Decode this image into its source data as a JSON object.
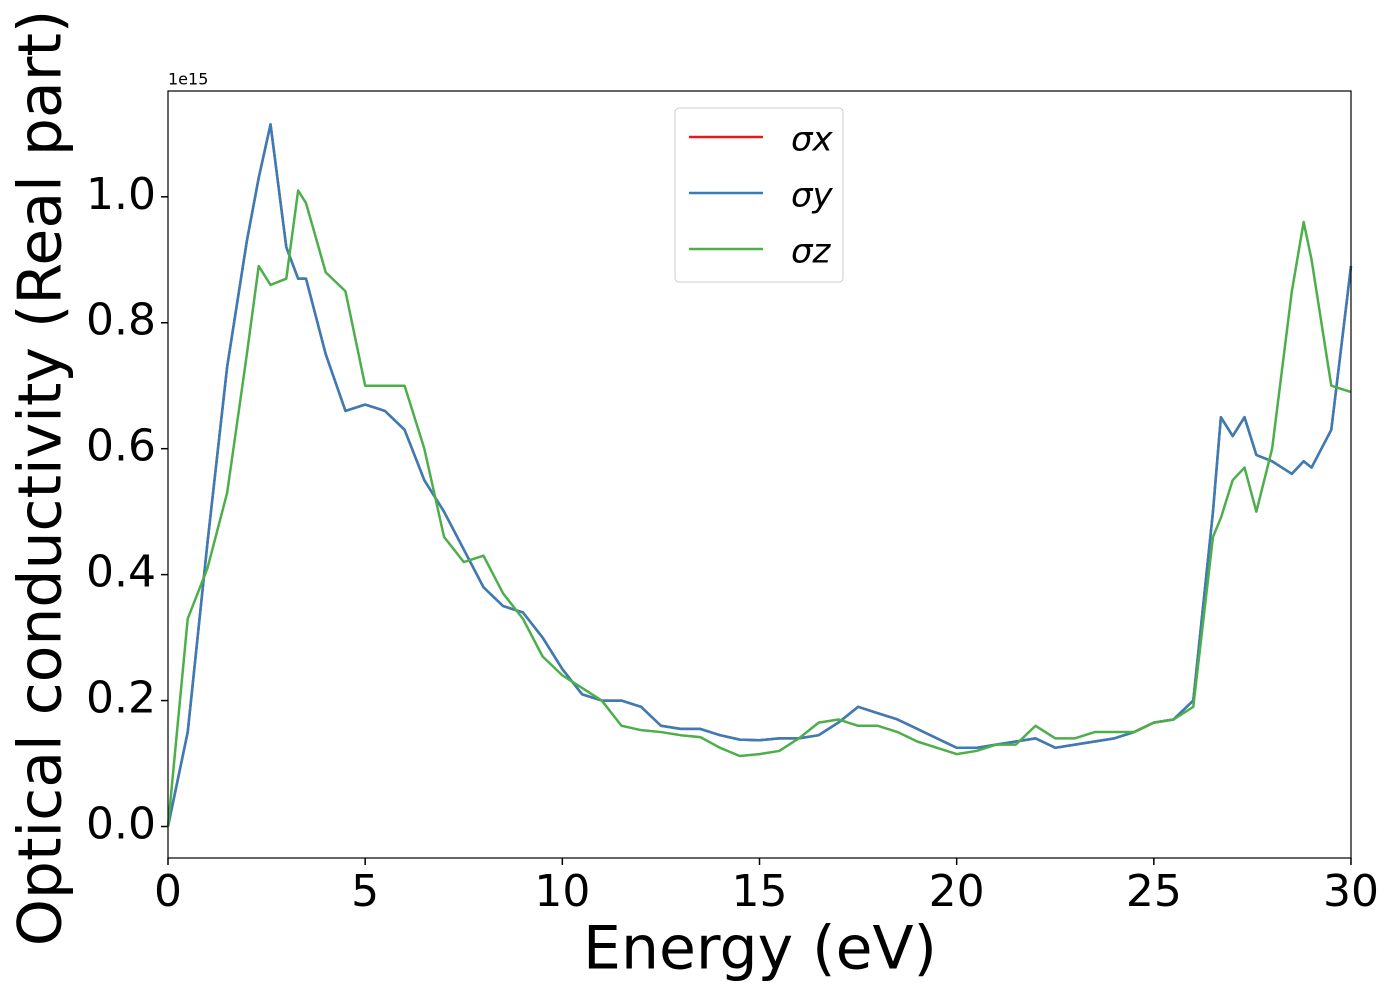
{
  "chart_data": {
    "type": "line",
    "xlabel": "Energy (eV)",
    "ylabel": "Optical conductivity (Real part)",
    "y_offset_label": "1e15",
    "x": [
      0,
      0.5,
      1,
      1.5,
      2,
      2.3,
      2.6,
      3,
      3.3,
      3.5,
      4,
      4.5,
      5,
      5.5,
      6,
      6.5,
      7,
      7.5,
      8,
      8.5,
      9,
      9.5,
      10,
      10.5,
      11,
      11.5,
      12,
      12.5,
      13,
      13.5,
      14,
      14.5,
      15,
      15.5,
      16,
      16.5,
      17,
      17.5,
      18,
      18.5,
      19,
      19.5,
      20,
      20.5,
      21,
      21.5,
      22,
      22.5,
      23,
      23.5,
      24,
      24.5,
      25,
      25.5,
      26,
      26.5,
      26.7,
      27,
      27.3,
      27.6,
      28,
      28.5,
      28.8,
      29,
      29.5,
      30
    ],
    "series": [
      {
        "name": "σx",
        "color": "#e41a1c",
        "values": [
          0,
          0.15,
          0.45,
          0.73,
          0.93,
          1.03,
          1.115,
          0.92,
          0.87,
          0.87,
          0.75,
          0.66,
          0.67,
          0.66,
          0.63,
          0.55,
          0.5,
          0.44,
          0.38,
          0.35,
          0.34,
          0.3,
          0.25,
          0.21,
          0.2,
          0.2,
          0.19,
          0.16,
          0.155,
          0.155,
          0.145,
          0.138,
          0.137,
          0.14,
          0.14,
          0.145,
          0.165,
          0.19,
          0.18,
          0.17,
          0.155,
          0.14,
          0.125,
          0.125,
          0.13,
          0.135,
          0.14,
          0.125,
          0.13,
          0.135,
          0.14,
          0.15,
          0.165,
          0.17,
          0.2,
          0.5,
          0.65,
          0.62,
          0.65,
          0.59,
          0.58,
          0.56,
          0.58,
          0.57,
          0.63,
          0.89
        ]
      },
      {
        "name": "σy",
        "color": "#377eb8",
        "values": [
          0,
          0.15,
          0.45,
          0.73,
          0.93,
          1.03,
          1.115,
          0.92,
          0.87,
          0.87,
          0.75,
          0.66,
          0.67,
          0.66,
          0.63,
          0.55,
          0.5,
          0.44,
          0.38,
          0.35,
          0.34,
          0.3,
          0.25,
          0.21,
          0.2,
          0.2,
          0.19,
          0.16,
          0.155,
          0.155,
          0.145,
          0.138,
          0.137,
          0.14,
          0.14,
          0.145,
          0.165,
          0.19,
          0.18,
          0.17,
          0.155,
          0.14,
          0.125,
          0.125,
          0.13,
          0.135,
          0.14,
          0.125,
          0.13,
          0.135,
          0.14,
          0.15,
          0.165,
          0.17,
          0.2,
          0.5,
          0.65,
          0.62,
          0.65,
          0.59,
          0.58,
          0.56,
          0.58,
          0.57,
          0.63,
          0.89
        ]
      },
      {
        "name": "σz",
        "color": "#4daf4a",
        "values": [
          0,
          0.33,
          0.41,
          0.53,
          0.75,
          0.89,
          0.86,
          0.87,
          1.01,
          0.99,
          0.88,
          0.85,
          0.7,
          0.7,
          0.7,
          0.6,
          0.46,
          0.42,
          0.43,
          0.37,
          0.33,
          0.27,
          0.24,
          0.22,
          0.2,
          0.16,
          0.153,
          0.15,
          0.145,
          0.142,
          0.125,
          0.112,
          0.115,
          0.12,
          0.14,
          0.165,
          0.17,
          0.16,
          0.16,
          0.15,
          0.135,
          0.125,
          0.115,
          0.12,
          0.13,
          0.13,
          0.16,
          0.14,
          0.14,
          0.15,
          0.15,
          0.15,
          0.165,
          0.17,
          0.19,
          0.46,
          0.49,
          0.55,
          0.57,
          0.5,
          0.6,
          0.85,
          0.96,
          0.9,
          0.7,
          0.69
        ]
      }
    ],
    "xlim": [
      0,
      30
    ],
    "xticks": [
      0,
      5,
      10,
      15,
      20,
      25,
      30
    ],
    "ylim": [
      -0.05,
      1.168
    ],
    "yticks": [
      {
        "value": 0,
        "label": "0.0"
      },
      0.2,
      0.4,
      0.6,
      0.8,
      {
        "value": 1,
        "label": "1.0"
      }
    ],
    "grid": false,
    "legend": "upper center"
  }
}
